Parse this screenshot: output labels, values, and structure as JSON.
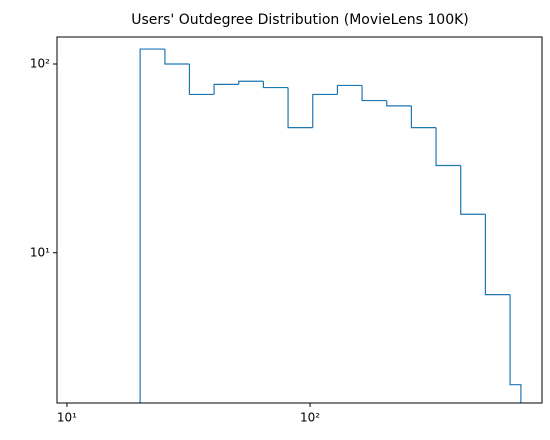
{
  "chart_data": {
    "type": "histogram",
    "title": "Users' Outdegree Distribution (MovieLens 100K)",
    "bins": [
      20,
      25.3,
      31.9,
      40.3,
      50.9,
      64.3,
      81.2,
      102.6,
      129.6,
      163.7,
      206.8,
      261.2,
      329.9,
      416.8,
      526.5,
      665,
      737
    ],
    "values": [
      120,
      100,
      69,
      78,
      81,
      75,
      46,
      69,
      77,
      64,
      60,
      46,
      29,
      16,
      6,
      2
    ],
    "color": "#1f77b4",
    "xlim": [
      9.1,
      900
    ],
    "ylim": [
      1.6,
      139
    ],
    "xscale": "log",
    "yscale": "log",
    "xticks": [
      {
        "value": 10,
        "label": "10¹"
      },
      {
        "value": 100,
        "label": "10²"
      }
    ],
    "yticks": [
      {
        "value": 10,
        "label": "10¹"
      },
      {
        "value": 100,
        "label": "10²"
      }
    ],
    "grid": false
  }
}
